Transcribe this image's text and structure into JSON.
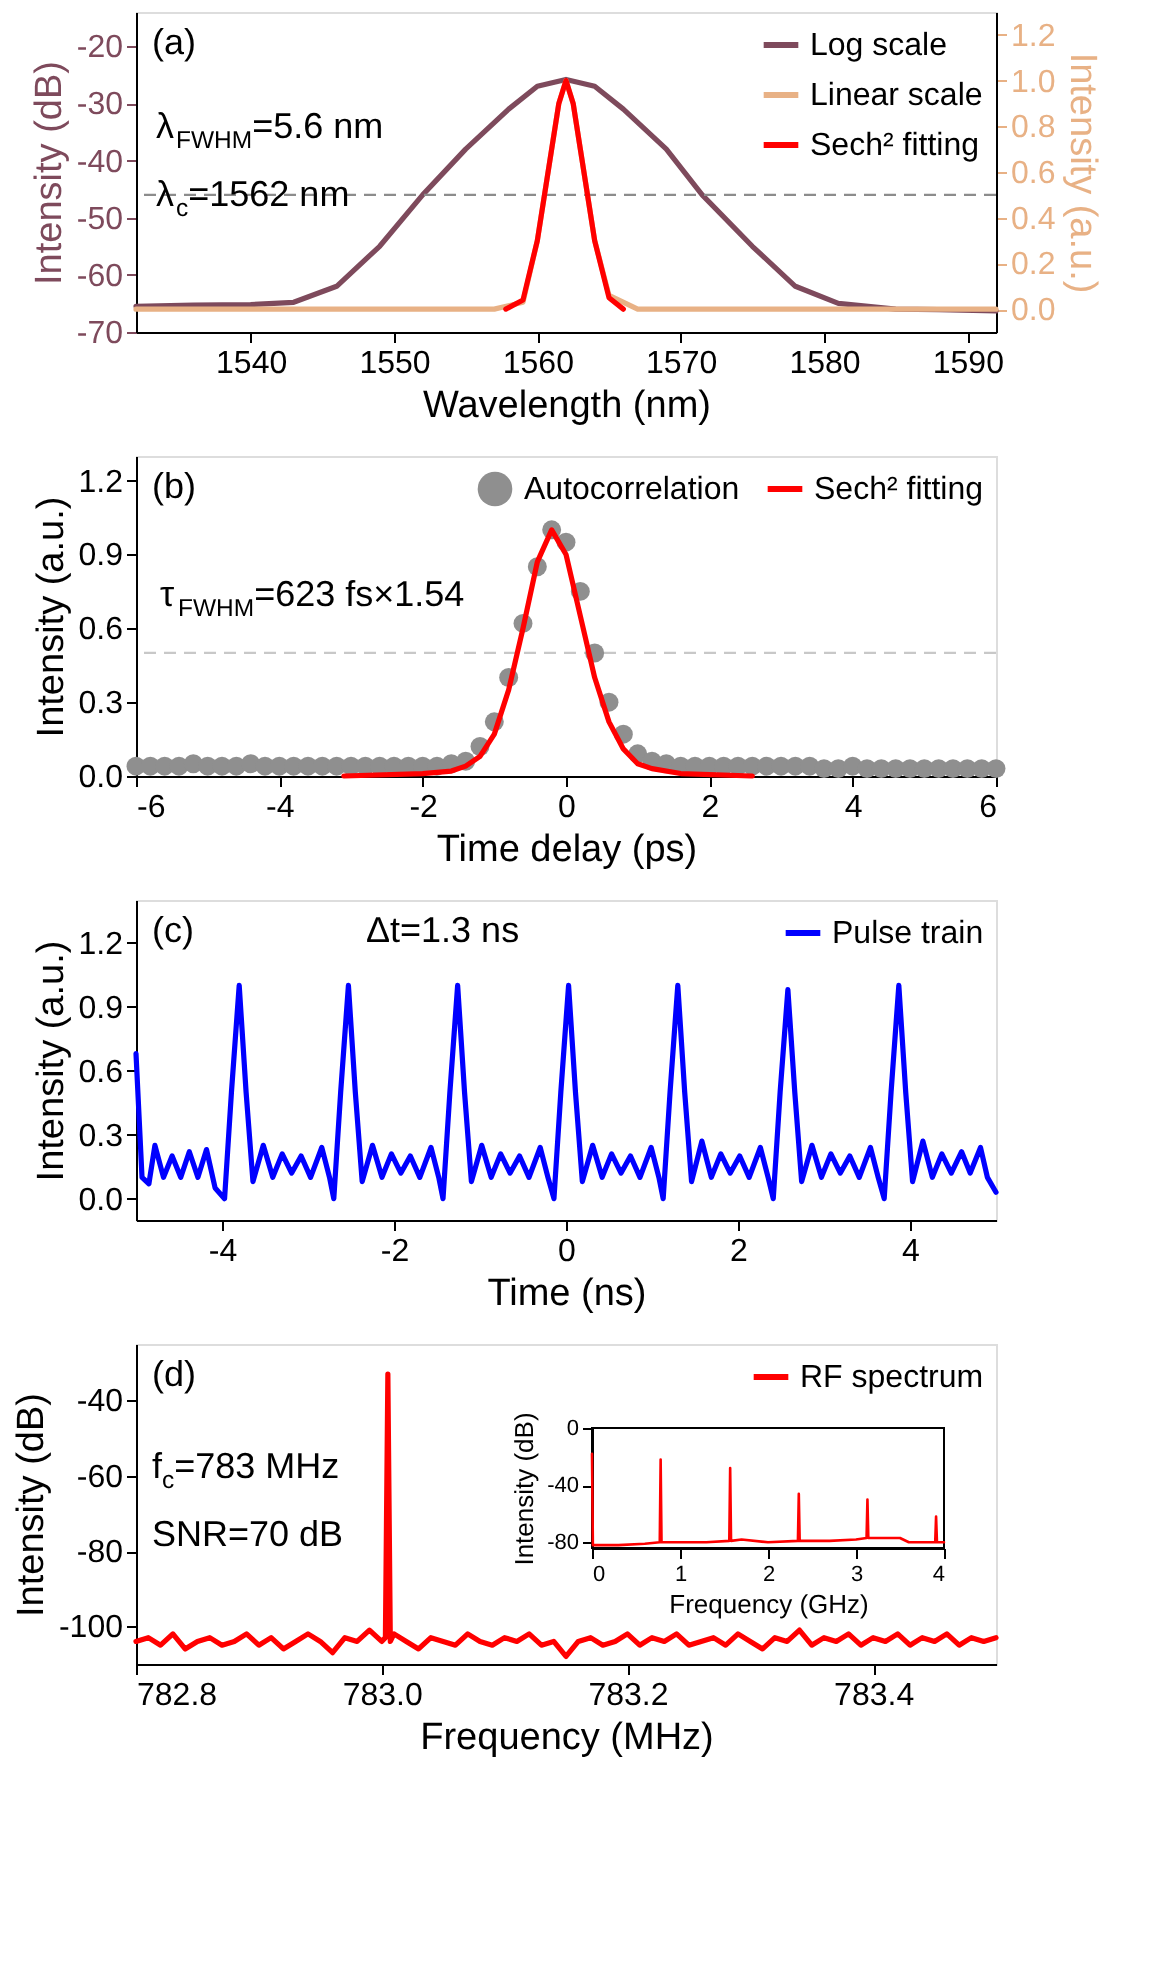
{
  "chart_data": [
    {
      "type": "line",
      "xlabel": "Wavelength (nm)",
      "ylabel": "Intensity (dB)",
      "y2label": "Intensity (a.u.)",
      "xlim": [
        1532,
        1592
      ],
      "xticks": [
        1540,
        1550,
        1560,
        1570,
        1580,
        1590
      ],
      "ylim": [
        -70,
        -14
      ],
      "yticks": [
        -70,
        -60,
        -50,
        -40,
        -30,
        -20
      ],
      "y2lim": [
        -0.1,
        1.3
      ],
      "y2ticks": [
        {
          "value": 0,
          "label": "0.0"
        },
        0.2,
        0.4,
        0.6,
        0.8,
        {
          "value": 1,
          "label": "1.0"
        },
        1.2
      ],
      "grid": false,
      "legend": "top right",
      "annotations": [
        "(a)",
        "λ$_{FWHM}$=5.6 nm",
        "λ$_{c}$=1562 nm"
      ],
      "ref_lines": [
        {
          "axis": "y2",
          "value": 0.5,
          "color": "#8c8c8c",
          "line_style": "dashed"
        }
      ],
      "series": [
        {
          "name": "Log scale",
          "color": "#7e4a5c",
          "x": [
            1532,
            1536,
            1540,
            1543,
            1546,
            1549,
            1552,
            1555,
            1558,
            1560,
            1562,
            1564,
            1566,
            1569,
            1571.5,
            1575,
            1578,
            1581,
            1585,
            1588,
            1592
          ],
          "values": [
            -65.5,
            -65.3,
            -65.2,
            -64.8,
            -62,
            -55,
            -46,
            -38,
            -31,
            -27,
            -25.8,
            -27,
            -31,
            -38,
            -46,
            -55,
            -62,
            -65,
            -66,
            -66.1,
            -66.3
          ]
        },
        {
          "name": "Linear scale",
          "color": "#e8b185",
          "axis": "y2",
          "x": [
            1532,
            1557,
            1559,
            1560,
            1561,
            1561.5,
            1562,
            1562.5,
            1563,
            1564,
            1565,
            1567,
            1592
          ],
          "values": [
            0,
            0,
            0.03,
            0.3,
            0.7,
            0.9,
            1.0,
            0.9,
            0.7,
            0.3,
            0.06,
            0,
            0
          ]
        },
        {
          "name": "Sech² fitting",
          "color": "#ff0000",
          "axis": "y2",
          "x": [
            1557.8,
            1559,
            1560,
            1561,
            1561.5,
            1562,
            1562.5,
            1563,
            1564,
            1565,
            1566
          ],
          "values": [
            0,
            0.04,
            0.3,
            0.7,
            0.9,
            1.0,
            0.9,
            0.7,
            0.3,
            0.05,
            0
          ]
        }
      ]
    },
    {
      "type": "line",
      "xlabel": "Time delay (ps)",
      "ylabel": "Intensity (a.u.)",
      "xlim": [
        -6,
        6
      ],
      "xticks": [
        -6,
        -4,
        -2,
        0,
        2,
        4,
        6
      ],
      "ylim": [
        0,
        1.3
      ],
      "yticks": [
        {
          "value": 0,
          "label": "0.0"
        },
        0.3,
        0.6,
        0.9,
        1.2
      ],
      "grid": false,
      "legend": "top right",
      "annotations": [
        "(b)",
        "τ$_{FWHM}$=623 fs×1.54"
      ],
      "ref_lines": [
        {
          "axis": "y",
          "value": 0.5,
          "color": "#c8c8c8",
          "line_style": "dashed"
        }
      ],
      "series": [
        {
          "name": "Autocorrelation",
          "type": "scatter",
          "marker": "circle",
          "color": "#8f8f8f",
          "x": [
            -6,
            -5.8,
            -5.6,
            -5.4,
            -5.2,
            -5,
            -4.8,
            -4.6,
            -4.4,
            -4.2,
            -4,
            -3.8,
            -3.6,
            -3.4,
            -3.2,
            -3,
            -2.8,
            -2.6,
            -2.4,
            -2.2,
            -2,
            -1.8,
            -1.6,
            -1.4,
            -1.2,
            -1,
            -0.8,
            -0.6,
            -0.4,
            -0.2,
            0,
            0.2,
            0.4,
            0.6,
            0.8,
            1,
            1.2,
            1.4,
            1.6,
            1.8,
            2,
            2.2,
            2.4,
            2.6,
            2.8,
            3,
            3.2,
            3.4,
            3.6,
            3.8,
            4,
            4.2,
            4.4,
            4.6,
            4.8,
            5,
            5.2,
            5.4,
            5.6,
            5.8,
            6
          ],
          "values": [
            0.04,
            0.04,
            0.04,
            0.04,
            0.05,
            0.04,
            0.04,
            0.04,
            0.05,
            0.04,
            0.04,
            0.04,
            0.04,
            0.04,
            0.04,
            0.04,
            0.04,
            0.04,
            0.04,
            0.04,
            0.04,
            0.04,
            0.05,
            0.06,
            0.12,
            0.22,
            0.4,
            0.62,
            0.85,
            1.0,
            0.95,
            0.75,
            0.5,
            0.3,
            0.17,
            0.09,
            0.06,
            0.05,
            0.04,
            0.04,
            0.04,
            0.04,
            0.04,
            0.04,
            0.04,
            0.04,
            0.04,
            0.04,
            0.03,
            0.03,
            0.04,
            0.03,
            0.03,
            0.03,
            0.03,
            0.03,
            0.03,
            0.03,
            0.03,
            0.03,
            0.03
          ]
        },
        {
          "name": "Sech² fitting",
          "type": "line",
          "color": "#ff0000",
          "x": [
            -3.1,
            -2,
            -1.6,
            -1.4,
            -1.2,
            -1.0,
            -0.8,
            -0.6,
            -0.4,
            -0.2,
            0,
            0.2,
            0.4,
            0.6,
            0.8,
            1.0,
            1.2,
            1.6,
            2.6
          ],
          "values": [
            0,
            0.01,
            0.02,
            0.04,
            0.08,
            0.17,
            0.35,
            0.6,
            0.87,
            1.0,
            0.9,
            0.65,
            0.4,
            0.22,
            0.11,
            0.05,
            0.03,
            0.01,
            0
          ]
        }
      ]
    },
    {
      "type": "line",
      "xlabel": "Time (ns)",
      "ylabel": "Intensity (a.u.)",
      "xlim": [
        -5,
        5
      ],
      "xticks": [
        -4,
        -2,
        0,
        2,
        4
      ],
      "ylim": [
        -0.1,
        1.4
      ],
      "yticks": [
        {
          "value": 0,
          "label": "0.0"
        },
        0.3,
        0.6,
        0.9,
        1.2
      ],
      "grid": false,
      "legend": "top right",
      "annotations": [
        "(c)",
        "Δt=1.3 ns"
      ],
      "series": [
        {
          "name": "Pulse train",
          "color": "#0000ff",
          "x": [
            -5,
            -4.93,
            -4.85,
            -4.78,
            -4.68,
            -4.58,
            -4.48,
            -4.38,
            -4.28,
            -4.18,
            -4.08,
            -3.97,
            -3.89,
            -3.8,
            -3.72,
            -3.64,
            -3.52,
            -3.41,
            -3.3,
            -3.19,
            -3.08,
            -2.97,
            -2.84,
            -2.75,
            -2.7,
            -2.62,
            -2.53,
            -2.45,
            -2.37,
            -2.25,
            -2.14,
            -2.03,
            -1.92,
            -1.81,
            -1.7,
            -1.57,
            -1.48,
            -1.43,
            -1.35,
            -1.26,
            -1.18,
            -1.1,
            -0.98,
            -0.87,
            -0.76,
            -0.65,
            -0.54,
            -0.43,
            -0.3,
            -0.21,
            -0.14,
            -0.06,
            0.03,
            0.11,
            0.19,
            0.31,
            0.42,
            0.53,
            0.64,
            0.75,
            0.86,
            0.99,
            1.08,
            1.13,
            1.21,
            1.3,
            1.38,
            1.46,
            1.58,
            1.69,
            1.8,
            1.91,
            2.02,
            2.13,
            2.26,
            2.35,
            2.41,
            2.49,
            2.58,
            2.66,
            2.74,
            2.86,
            2.97,
            3.08,
            3.19,
            3.3,
            3.41,
            3.54,
            3.63,
            3.7,
            3.78,
            3.87,
            3.95,
            4.03,
            4.15,
            4.26,
            4.37,
            4.48,
            4.6,
            4.7,
            4.82,
            4.9,
            5.0
          ],
          "values": [
            0.68,
            0.1,
            0.07,
            0.25,
            0.1,
            0.2,
            0.1,
            0.22,
            0.1,
            0.23,
            0.05,
            0.0,
            0.5,
            1.0,
            0.5,
            0.08,
            0.25,
            0.1,
            0.21,
            0.12,
            0.2,
            0.1,
            0.24,
            0.1,
            0.0,
            0.5,
            1.0,
            0.5,
            0.08,
            0.25,
            0.1,
            0.21,
            0.12,
            0.2,
            0.1,
            0.24,
            0.1,
            0.0,
            0.5,
            1.0,
            0.5,
            0.08,
            0.25,
            0.1,
            0.21,
            0.12,
            0.2,
            0.1,
            0.24,
            0.1,
            0.0,
            0.5,
            1.0,
            0.5,
            0.08,
            0.25,
            0.1,
            0.21,
            0.12,
            0.2,
            0.1,
            0.24,
            0.1,
            0.0,
            0.5,
            1.0,
            0.5,
            0.08,
            0.27,
            0.1,
            0.21,
            0.12,
            0.2,
            0.1,
            0.24,
            0.1,
            0.0,
            0.5,
            0.98,
            0.5,
            0.08,
            0.25,
            0.1,
            0.21,
            0.12,
            0.2,
            0.1,
            0.24,
            0.1,
            0.0,
            0.5,
            1.0,
            0.5,
            0.08,
            0.27,
            0.1,
            0.21,
            0.12,
            0.22,
            0.12,
            0.24,
            0.1,
            0.03
          ]
        }
      ]
    },
    {
      "type": "line",
      "xlabel": "Frequency (MHz)",
      "ylabel": "Intensity (dB)",
      "xlim": [
        782.8,
        783.5
      ],
      "xticks": [
        782.8,
        {
          "value": 783.0,
          "label": "783.0"
        },
        783.2,
        783.4
      ],
      "ylim": [
        -110,
        -25
      ],
      "yticks": [
        -100,
        -80,
        -60,
        -40
      ],
      "grid": false,
      "legend": "top right",
      "annotations": [
        "(d)",
        "f$_{c}$=783 MHz",
        "SNR=70 dB"
      ],
      "series": [
        {
          "name": "RF spectrum",
          "color": "#ff0000",
          "x": [
            782.8,
            782.81,
            782.82,
            782.83,
            782.84,
            782.85,
            782.86,
            782.87,
            782.88,
            782.89,
            782.9,
            782.91,
            782.92,
            782.93,
            782.94,
            782.95,
            782.96,
            782.97,
            782.98,
            782.99,
            783.0,
            783.003,
            783.005,
            783.007,
            783.01,
            783.02,
            783.03,
            783.04,
            783.05,
            783.06,
            783.07,
            783.08,
            783.09,
            783.1,
            783.11,
            783.12,
            783.13,
            783.14,
            783.15,
            783.16,
            783.17,
            783.18,
            783.19,
            783.2,
            783.21,
            783.22,
            783.23,
            783.24,
            783.25,
            783.26,
            783.27,
            783.28,
            783.29,
            783.3,
            783.31,
            783.32,
            783.33,
            783.34,
            783.35,
            783.36,
            783.37,
            783.38,
            783.39,
            783.4,
            783.41,
            783.42,
            783.43,
            783.44,
            783.45,
            783.46,
            783.47,
            783.48,
            783.49,
            783.5
          ],
          "values": [
            -104,
            -103,
            -105,
            -102,
            -106,
            -104,
            -103,
            -105,
            -104,
            -102,
            -105,
            -103,
            -106,
            -104,
            -102,
            -104,
            -107,
            -103,
            -104,
            -101,
            -104,
            -103,
            -33,
            -104,
            -102,
            -104,
            -106,
            -103,
            -104,
            -105,
            -102,
            -104,
            -105,
            -103,
            -104,
            -102,
            -105,
            -104,
            -108,
            -104,
            -103,
            -105,
            -104,
            -102,
            -105,
            -103,
            -104,
            -102,
            -105,
            -104,
            -103,
            -105,
            -102,
            -104,
            -106,
            -103,
            -104,
            -101,
            -105,
            -103,
            -104,
            -102,
            -105,
            -103,
            -104,
            -102,
            -105,
            -103,
            -104,
            -102,
            -105,
            -103,
            -104,
            -103
          ]
        }
      ]
    },
    {
      "type": "line",
      "xlabel": "Frequency (GHz)",
      "ylabel": "Intensity (dB)",
      "xlim": [
        0,
        4
      ],
      "xticks": [
        0,
        1,
        2,
        3,
        4
      ],
      "ylim": [
        -84,
        0
      ],
      "yticks": [
        -80,
        -40,
        0
      ],
      "grid": false,
      "series": [
        {
          "color": "#ff0000",
          "x": [
            0,
            0.01,
            0.3,
            0.6,
            0.77,
            0.78,
            0.79,
            1.0,
            1.3,
            1.56,
            1.57,
            1.58,
            1.7,
            2.0,
            2.34,
            2.35,
            2.36,
            2.7,
            3.0,
            3.12,
            3.13,
            3.14,
            3.5,
            3.6,
            3.9,
            3.91,
            3.92,
            4.0
          ],
          "values": [
            -18,
            -82,
            -82,
            -81,
            -80,
            -22,
            -80,
            -80,
            -80,
            -79,
            -28,
            -79,
            -78,
            -80,
            -79,
            -46,
            -79,
            -79,
            -78,
            -77,
            -50,
            -77,
            -77,
            -80,
            -80,
            -62,
            -80,
            -80
          ]
        }
      ]
    }
  ]
}
